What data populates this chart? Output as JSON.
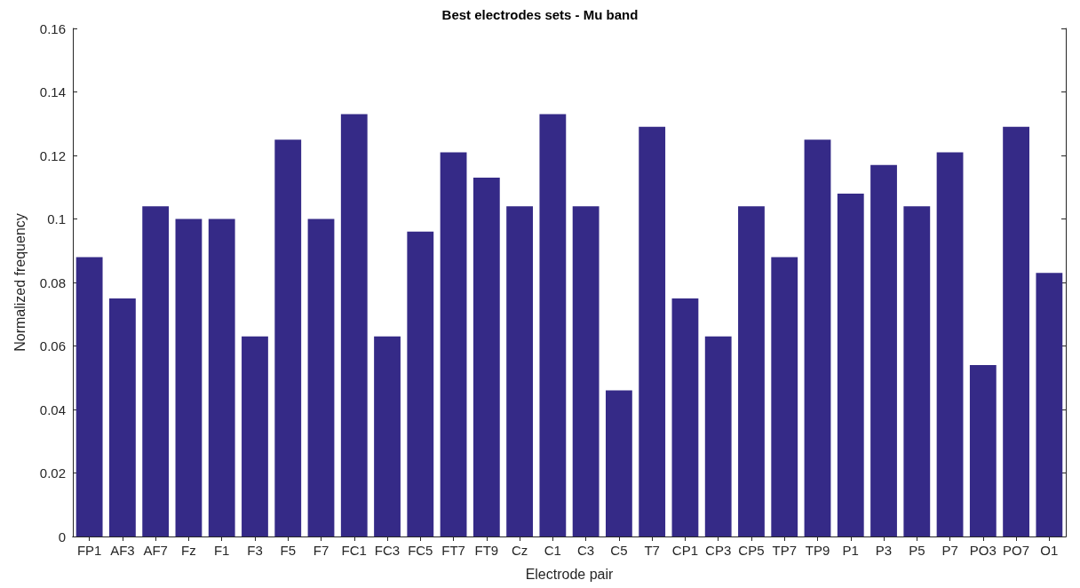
{
  "chart_data": {
    "type": "bar",
    "title": "Best electrodes sets - Mu band",
    "xlabel": "Electrode pair",
    "ylabel": "Normalized frequency",
    "categories": [
      "FP1",
      "AF3",
      "AF7",
      "Fz",
      "F1",
      "F3",
      "F5",
      "F7",
      "FC1",
      "FC3",
      "FC5",
      "FT7",
      "FT9",
      "Cz",
      "C1",
      "C3",
      "C5",
      "T7",
      "CP1",
      "CP3",
      "CP5",
      "TP7",
      "TP9",
      "P1",
      "P3",
      "P5",
      "P7",
      "PO3",
      "PO7",
      "O1"
    ],
    "values": [
      0.088,
      0.075,
      0.104,
      0.1,
      0.1,
      0.063,
      0.125,
      0.1,
      0.133,
      0.063,
      0.096,
      0.121,
      0.113,
      0.104,
      0.133,
      0.104,
      0.046,
      0.129,
      0.075,
      0.063,
      0.104,
      0.088,
      0.125,
      0.108,
      0.117,
      0.104,
      0.121,
      0.054,
      0.129,
      0.083
    ],
    "color": "#352a87",
    "ylim": [
      0,
      0.16
    ],
    "yticks": [
      0,
      0.02,
      0.04,
      0.06,
      0.08,
      0.1,
      0.12,
      0.14,
      0.16
    ],
    "grid": false
  }
}
